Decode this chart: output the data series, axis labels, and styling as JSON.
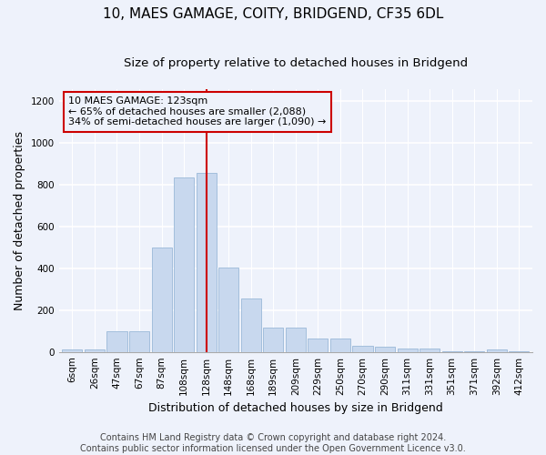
{
  "title": "10, MAES GAMAGE, COITY, BRIDGEND, CF35 6DL",
  "subtitle": "Size of property relative to detached houses in Bridgend",
  "xlabel": "Distribution of detached houses by size in Bridgend",
  "ylabel": "Number of detached properties",
  "footer_line1": "Contains HM Land Registry data © Crown copyright and database right 2024.",
  "footer_line2": "Contains public sector information licensed under the Open Government Licence v3.0.",
  "bar_labels": [
    "6sqm",
    "26sqm",
    "47sqm",
    "67sqm",
    "87sqm",
    "108sqm",
    "128sqm",
    "148sqm",
    "168sqm",
    "189sqm",
    "209sqm",
    "229sqm",
    "250sqm",
    "270sqm",
    "290sqm",
    "311sqm",
    "331sqm",
    "351sqm",
    "371sqm",
    "392sqm",
    "412sqm"
  ],
  "bar_values": [
    10,
    12,
    100,
    100,
    500,
    835,
    855,
    405,
    255,
    115,
    115,
    65,
    65,
    30,
    25,
    15,
    15,
    5,
    5,
    12,
    5
  ],
  "bar_color": "#c8d8ee",
  "bar_edge_color": "#9ab8d8",
  "annotation_line1": "10 MAES GAMAGE: 123sqm",
  "annotation_line2": "← 65% of detached houses are smaller (2,088)",
  "annotation_line3": "34% of semi-detached houses are larger (1,090) →",
  "vline_x_index": 6,
  "vline_color": "#cc0000",
  "annotation_box_edge_color": "#cc0000",
  "ylim": [
    0,
    1260
  ],
  "yticks": [
    0,
    200,
    400,
    600,
    800,
    1000,
    1200
  ],
  "background_color": "#eef2fb",
  "grid_color": "#ffffff",
  "title_fontsize": 11,
  "subtitle_fontsize": 9.5,
  "axis_label_fontsize": 9,
  "tick_fontsize": 7.5,
  "footer_fontsize": 7,
  "annotation_fontsize": 8
}
